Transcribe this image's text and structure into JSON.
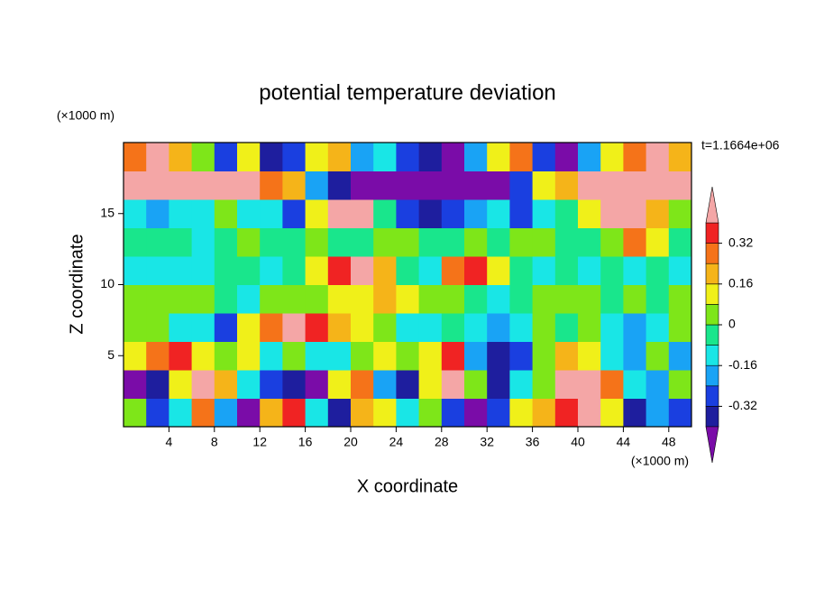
{
  "chart_data": {
    "type": "contour",
    "title": "potential temperature deviation",
    "xlabel": "X coordinate",
    "ylabel": "Z coordinate",
    "xunit": "(×1000 m)",
    "yunit": "(×1000 m)",
    "annotation": "t=1.1664e+06",
    "xlim": [
      0,
      50
    ],
    "ylim": [
      0,
      20
    ],
    "xticks": [
      4,
      8,
      12,
      16,
      20,
      24,
      28,
      32,
      36,
      40,
      44,
      48
    ],
    "yticks": [
      5,
      10,
      15
    ],
    "x": [
      1,
      3,
      5,
      7,
      9,
      11,
      13,
      15,
      17,
      19,
      21,
      23,
      25,
      27,
      29,
      31,
      33,
      35,
      37,
      39,
      41,
      43,
      45,
      47,
      49
    ],
    "y": [
      1,
      3,
      5,
      7,
      9,
      11,
      13,
      15,
      17,
      19
    ],
    "z": [
      [
        0.05,
        -0.3,
        -0.1,
        0.3,
        -0.2,
        -0.45,
        0.2,
        0.35,
        -0.1,
        -0.35,
        0.2,
        0.1,
        -0.1,
        0.0,
        -0.3,
        -0.45,
        -0.3,
        0.1,
        0.2,
        0.35,
        0.45,
        0.1,
        -0.35,
        -0.2,
        -0.3
      ],
      [
        -0.45,
        -0.35,
        0.1,
        0.45,
        0.2,
        -0.1,
        -0.3,
        -0.4,
        -0.45,
        0.1,
        0.3,
        -0.2,
        -0.35,
        0.1,
        0.42,
        0.0,
        -0.4,
        -0.1,
        0.0,
        0.45,
        0.45,
        0.3,
        -0.1,
        -0.2,
        0.0
      ],
      [
        0.1,
        0.3,
        0.35,
        0.1,
        0.0,
        0.1,
        -0.1,
        0.0,
        -0.15,
        -0.1,
        0.05,
        0.1,
        0.0,
        0.1,
        0.35,
        -0.2,
        -0.35,
        -0.3,
        0.0,
        0.2,
        0.1,
        -0.1,
        -0.2,
        0.0,
        -0.2
      ],
      [
        0.05,
        0.0,
        -0.1,
        -0.15,
        -0.3,
        0.1,
        0.3,
        0.4,
        0.35,
        0.2,
        0.1,
        0.0,
        -0.1,
        -0.15,
        -0.05,
        -0.1,
        -0.2,
        -0.1,
        0.0,
        -0.05,
        0.0,
        -0.1,
        -0.2,
        -0.1,
        0.0
      ],
      [
        0.0,
        0.02,
        0.05,
        0.03,
        -0.05,
        -0.1,
        0.0,
        0.03,
        0.0,
        0.1,
        0.15,
        0.18,
        0.1,
        0.05,
        0.0,
        -0.05,
        -0.1,
        -0.05,
        0.0,
        0.05,
        0.0,
        -0.05,
        0.0,
        -0.05,
        0.0
      ],
      [
        -0.12,
        -0.1,
        -0.1,
        -0.12,
        -0.05,
        -0.02,
        -0.1,
        -0.05,
        0.1,
        0.35,
        0.42,
        0.2,
        -0.05,
        -0.15,
        0.3,
        0.35,
        0.15,
        -0.05,
        -0.1,
        -0.05,
        -0.1,
        -0.05,
        -0.1,
        -0.05,
        -0.1
      ],
      [
        -0.05,
        -0.02,
        -0.05,
        -0.1,
        -0.05,
        0.02,
        -0.05,
        -0.02,
        0.04,
        -0.05,
        -0.02,
        0.03,
        0.0,
        -0.03,
        -0.05,
        0.02,
        -0.02,
        0.03,
        0.0,
        -0.05,
        -0.03,
        0.02,
        0.3,
        0.1,
        -0.05
      ],
      [
        -0.1,
        -0.2,
        -0.15,
        -0.1,
        0.0,
        -0.1,
        -0.15,
        -0.25,
        0.1,
        0.42,
        0.4,
        -0.05,
        -0.3,
        -0.35,
        -0.25,
        -0.2,
        -0.15,
        -0.25,
        -0.15,
        -0.05,
        0.15,
        0.42,
        0.4,
        0.2,
        0.0
      ],
      [
        0.45,
        0.45,
        0.45,
        0.45,
        0.42,
        0.42,
        0.3,
        0.2,
        -0.2,
        -0.35,
        -0.45,
        -0.45,
        -0.45,
        -0.45,
        -0.45,
        -0.45,
        -0.45,
        -0.3,
        0.1,
        0.2,
        0.45,
        0.45,
        0.45,
        0.45,
        0.42
      ],
      [
        0.3,
        0.4,
        0.2,
        0.0,
        -0.3,
        0.1,
        -0.4,
        -0.3,
        0.1,
        0.2,
        -0.2,
        -0.1,
        -0.3,
        -0.4,
        -0.45,
        -0.2,
        0.1,
        0.3,
        -0.3,
        -0.45,
        -0.2,
        0.1,
        0.3,
        0.4,
        0.2
      ]
    ],
    "levels": [
      -0.4,
      -0.32,
      -0.24,
      -0.16,
      -0.08,
      0,
      0.08,
      0.16,
      0.24,
      0.32,
      0.4
    ],
    "colors": [
      "#7a0ca8",
      "#1e1e9e",
      "#1a3fe0",
      "#19a3f5",
      "#19e6e6",
      "#19e68c",
      "#7ee619",
      "#f0f019",
      "#f5b419",
      "#f57319",
      "#f02323",
      "#f4a6a6"
    ],
    "cbar_ticks": [
      0.32,
      0.16,
      0,
      -0.16,
      -0.32
    ]
  }
}
